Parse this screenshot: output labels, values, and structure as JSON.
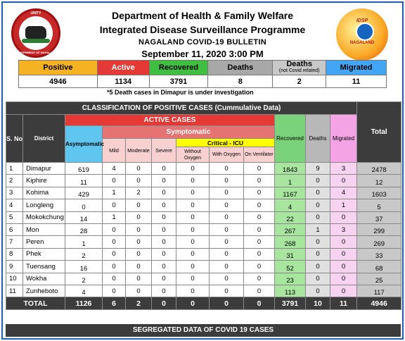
{
  "header": {
    "line1": "Department of Health & Family Welfare",
    "line2": "Integrated Disease Surveillance Programme",
    "line3": "NAGALAND COVID-19 BULLETIN",
    "line4": "September 11, 2020 3:00 PM"
  },
  "logos": {
    "left_top": "UNITY",
    "left_bottom": "GOVERNMENT OF NAGALAND",
    "right_top": "IDSP",
    "right_bottom": "NAGALAND"
  },
  "summary": {
    "positive_label": "Positive",
    "active_label": "Active",
    "recovered_label": "Recovered",
    "deaths_label": "Deaths",
    "deaths_nc_label": "Deaths",
    "deaths_nc_sub": "(not Covid related)",
    "migrated_label": "Migrated",
    "positive": "4946",
    "active": "1134",
    "recovered": "3791",
    "deaths": "8",
    "deaths_nc": "2",
    "migrated": "11",
    "note": "*5 Death cases in Dimapur is under investigation"
  },
  "table": {
    "title": "CLASSIFICATION OF POSITIVE CASES (Cummulative Data)",
    "active_cases": "ACTIVE CASES",
    "symptomatic": "Symptomatic",
    "critical_icu": "Critical - ICU",
    "sno": "S. No",
    "district": "District",
    "asymptomatic": "Asymptomatic",
    "mild": "Mild",
    "moderate": "Moderate",
    "severe": "Severe",
    "without_oxygen": "Without Oxygen",
    "with_oxygen": "With Oxygen",
    "on_ventilator": "On Ventilator",
    "recovered": "Recovered",
    "deaths": "Deaths",
    "migrated": "Migrated",
    "total": "Total",
    "rows": [
      {
        "sno": "1",
        "district": "Dimapur",
        "asym": "619",
        "mild": "4",
        "moderate": "0",
        "severe": "0",
        "wo": "0",
        "wox": "0",
        "vent": "0",
        "rec": "1843",
        "dth": "9",
        "mig": "3",
        "tot": "2478"
      },
      {
        "sno": "2",
        "district": "Kiphire",
        "asym": "11",
        "mild": "0",
        "moderate": "0",
        "severe": "0",
        "wo": "0",
        "wox": "0",
        "vent": "0",
        "rec": "1",
        "dth": "0",
        "mig": "0",
        "tot": "12"
      },
      {
        "sno": "3",
        "district": "Kohima",
        "asym": "429",
        "mild": "1",
        "moderate": "2",
        "severe": "0",
        "wo": "0",
        "wox": "0",
        "vent": "0",
        "rec": "1167",
        "dth": "0",
        "mig": "4",
        "tot": "1603"
      },
      {
        "sno": "4",
        "district": "Longleng",
        "asym": "0",
        "mild": "0",
        "moderate": "0",
        "severe": "0",
        "wo": "0",
        "wox": "0",
        "vent": "0",
        "rec": "4",
        "dth": "0",
        "mig": "1",
        "tot": "5"
      },
      {
        "sno": "5",
        "district": "Mokokchung",
        "asym": "14",
        "mild": "1",
        "moderate": "0",
        "severe": "0",
        "wo": "0",
        "wox": "0",
        "vent": "0",
        "rec": "22",
        "dth": "0",
        "mig": "0",
        "tot": "37"
      },
      {
        "sno": "6",
        "district": "Mon",
        "asym": "28",
        "mild": "0",
        "moderate": "0",
        "severe": "0",
        "wo": "0",
        "wox": "0",
        "vent": "0",
        "rec": "267",
        "dth": "1",
        "mig": "3",
        "tot": "299"
      },
      {
        "sno": "7",
        "district": "Peren",
        "asym": "1",
        "mild": "0",
        "moderate": "0",
        "severe": "0",
        "wo": "0",
        "wox": "0",
        "vent": "0",
        "rec": "268",
        "dth": "0",
        "mig": "0",
        "tot": "269"
      },
      {
        "sno": "8",
        "district": "Phek",
        "asym": "2",
        "mild": "0",
        "moderate": "0",
        "severe": "0",
        "wo": "0",
        "wox": "0",
        "vent": "0",
        "rec": "31",
        "dth": "0",
        "mig": "0",
        "tot": "33"
      },
      {
        "sno": "9",
        "district": "Tuensang",
        "asym": "16",
        "mild": "0",
        "moderate": "0",
        "severe": "0",
        "wo": "0",
        "wox": "0",
        "vent": "0",
        "rec": "52",
        "dth": "0",
        "mig": "0",
        "tot": "68"
      },
      {
        "sno": "10",
        "district": "Wokha",
        "asym": "2",
        "mild": "0",
        "moderate": "0",
        "severe": "0",
        "wo": "0",
        "wox": "0",
        "vent": "0",
        "rec": "23",
        "dth": "0",
        "mig": "0",
        "tot": "25"
      },
      {
        "sno": "11",
        "district": "Zunheboto",
        "asym": "4",
        "mild": "0",
        "moderate": "0",
        "severe": "0",
        "wo": "0",
        "wox": "0",
        "vent": "0",
        "rec": "113",
        "dth": "0",
        "mig": "0",
        "tot": "117"
      }
    ],
    "total_row": {
      "label": "TOTAL",
      "asym": "1126",
      "mild": "6",
      "moderate": "2",
      "severe": "0",
      "wo": "0",
      "wox": "0",
      "vent": "0",
      "rec": "3791",
      "dth": "10",
      "mig": "11",
      "tot": "4946"
    }
  },
  "footer": {
    "segregated": "SEGREGATED DATA OF COVID 19 CASES"
  },
  "colors": {
    "frame": "#1f5fb8",
    "positive": "#f5b324",
    "active": "#e53935",
    "recovered": "#3fbf3f",
    "deaths": "#a8a8a8",
    "migrated": "#42a5f5",
    "dark_header": "#3c3c3c",
    "critical": "#ffff00"
  }
}
